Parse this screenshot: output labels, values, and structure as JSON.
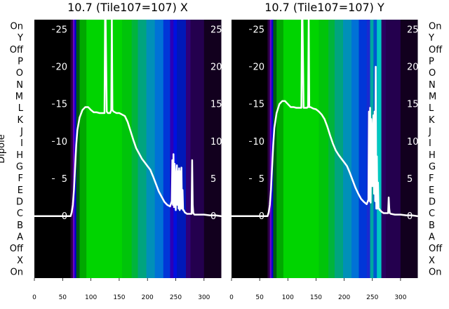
{
  "chart_data": [
    {
      "type": "heatmap",
      "title": "10.7 (Tile107=107) X",
      "ylabel": "Dipole",
      "xlim": [
        0,
        330
      ],
      "x_ticks": [
        0,
        50,
        100,
        150,
        200,
        250,
        300
      ],
      "dipole_labels": [
        "On",
        "Y",
        "Off",
        "P",
        "O",
        "N",
        "M",
        "L",
        "K",
        "J",
        "I",
        "H",
        "G",
        "F",
        "E",
        "D",
        "C",
        "B",
        "A",
        "Off",
        "X",
        "On"
      ],
      "profile_ylim": [
        -8.3,
        26.3
      ],
      "profile_yticks": [
        0,
        5,
        10,
        15,
        20,
        25
      ],
      "heatmap_columns": [
        {
          "x0": 0,
          "x1": 64,
          "color": "#000000"
        },
        {
          "x0": 64,
          "x1": 68,
          "color": "#2a0040"
        },
        {
          "x0": 68,
          "x1": 71,
          "color": "#6a00c8"
        },
        {
          "x0": 71,
          "x1": 74,
          "color": "#0000d0"
        },
        {
          "x0": 74,
          "x1": 80,
          "color": "#005a10"
        },
        {
          "x0": 80,
          "x1": 92,
          "color": "#00a800"
        },
        {
          "x0": 92,
          "x1": 155,
          "color": "#00d400"
        },
        {
          "x0": 155,
          "x1": 172,
          "color": "#00c40a"
        },
        {
          "x0": 172,
          "x1": 183,
          "color": "#00b43c"
        },
        {
          "x0": 183,
          "x1": 198,
          "color": "#00a47e"
        },
        {
          "x0": 198,
          "x1": 213,
          "color": "#0090b8"
        },
        {
          "x0": 213,
          "x1": 228,
          "color": "#0072d6"
        },
        {
          "x0": 228,
          "x1": 240,
          "color": "#0036d8"
        },
        {
          "x0": 240,
          "x1": 246,
          "color": "#2a00b8"
        },
        {
          "x0": 246,
          "x1": 252,
          "color": "#0010e0"
        },
        {
          "x0": 252,
          "x1": 268,
          "color": "#0018b8"
        },
        {
          "x0": 268,
          "x1": 276,
          "color": "#300078"
        },
        {
          "x0": 276,
          "x1": 300,
          "color": "#24004e"
        },
        {
          "x0": 300,
          "x1": 330,
          "color": "#12001e"
        }
      ],
      "profile": {
        "x": [
          0,
          55,
          60,
          64,
          66,
          68,
          70,
          72,
          74,
          76,
          80,
          85,
          90,
          95,
          100,
          105,
          110,
          115,
          120,
          124,
          125,
          126,
          128,
          130,
          134,
          135,
          136,
          137,
          138,
          140,
          145,
          150,
          155,
          160,
          165,
          170,
          175,
          180,
          185,
          190,
          195,
          200,
          205,
          210,
          215,
          220,
          225,
          230,
          235,
          240,
          243,
          244,
          245,
          246,
          247,
          248,
          250,
          251,
          252,
          253,
          254,
          255,
          256,
          257,
          258,
          259,
          260,
          261,
          262,
          263,
          264,
          266,
          268,
          270,
          274,
          276,
          278,
          279,
          280,
          281,
          283,
          290,
          300,
          310,
          320,
          330
        ],
        "y": [
          0,
          0,
          0,
          0,
          0.5,
          1.5,
          3.5,
          6.5,
          9.5,
          11.5,
          13.2,
          14.2,
          14.6,
          14.6,
          14.2,
          13.9,
          13.9,
          13.8,
          13.8,
          13.8,
          26.3,
          26.3,
          14,
          13.8,
          13.8,
          14,
          14.2,
          26.3,
          14.2,
          14,
          13.8,
          13.8,
          13.6,
          13.4,
          12.6,
          11.4,
          10.2,
          9.1,
          8.4,
          7.7,
          7.2,
          6.7,
          6.2,
          5.3,
          4.3,
          3.3,
          2.6,
          1.9,
          1.5,
          1.3,
          2.0,
          7.5,
          1.5,
          8.3,
          1.2,
          7.0,
          0.8,
          5.3,
          6.8,
          1.5,
          6.0,
          1.0,
          6.4,
          0.8,
          6.0,
          1.0,
          6.5,
          1.0,
          3.5,
          0.8,
          0.8,
          0.5,
          0.4,
          0.3,
          0.3,
          0.3,
          0.3,
          7.5,
          1.5,
          0.4,
          0.2,
          0.2,
          0.2,
          0.1,
          0.1,
          0.0
        ]
      }
    },
    {
      "type": "heatmap",
      "title": "10.7 (Tile107=107) Y",
      "ylabel": "",
      "xlim": [
        0,
        330
      ],
      "x_ticks": [
        0,
        50,
        100,
        150,
        200,
        250,
        300
      ],
      "dipole_labels": [
        "On",
        "Y",
        "Off",
        "P",
        "O",
        "N",
        "M",
        "L",
        "K",
        "J",
        "I",
        "H",
        "G",
        "F",
        "E",
        "D",
        "C",
        "B",
        "A",
        "Off",
        "X",
        "On"
      ],
      "profile_ylim": [
        -8.3,
        26.3
      ],
      "profile_yticks": [
        0,
        5,
        10,
        15,
        20,
        25
      ],
      "heatmap_columns": [
        {
          "x0": 0,
          "x1": 64,
          "color": "#000000"
        },
        {
          "x0": 64,
          "x1": 68,
          "color": "#2a0040"
        },
        {
          "x0": 68,
          "x1": 71,
          "color": "#6a00c8"
        },
        {
          "x0": 71,
          "x1": 74,
          "color": "#0000d0"
        },
        {
          "x0": 74,
          "x1": 80,
          "color": "#005a10"
        },
        {
          "x0": 80,
          "x1": 92,
          "color": "#00a800"
        },
        {
          "x0": 92,
          "x1": 155,
          "color": "#00d400"
        },
        {
          "x0": 155,
          "x1": 172,
          "color": "#00c40a"
        },
        {
          "x0": 172,
          "x1": 183,
          "color": "#00b43c"
        },
        {
          "x0": 183,
          "x1": 198,
          "color": "#00a47e"
        },
        {
          "x0": 198,
          "x1": 213,
          "color": "#0090b8"
        },
        {
          "x0": 213,
          "x1": 226,
          "color": "#0072d6"
        },
        {
          "x0": 226,
          "x1": 240,
          "color": "#0036d8"
        },
        {
          "x0": 240,
          "x1": 246,
          "color": "#1a2ad0"
        },
        {
          "x0": 246,
          "x1": 252,
          "color": "#00a8a0"
        },
        {
          "x0": 252,
          "x1": 258,
          "color": "#0058d0"
        },
        {
          "x0": 258,
          "x1": 266,
          "color": "#00c8c0"
        },
        {
          "x0": 266,
          "x1": 274,
          "color": "#2a0060"
        },
        {
          "x0": 274,
          "x1": 300,
          "color": "#24004e"
        },
        {
          "x0": 300,
          "x1": 330,
          "color": "#12001e"
        }
      ],
      "profile": {
        "x": [
          0,
          55,
          60,
          64,
          66,
          68,
          70,
          72,
          74,
          76,
          80,
          85,
          90,
          95,
          100,
          105,
          110,
          115,
          120,
          124,
          125,
          126,
          128,
          130,
          134,
          135,
          136,
          137,
          138,
          140,
          145,
          150,
          155,
          160,
          165,
          170,
          175,
          180,
          185,
          190,
          195,
          200,
          205,
          210,
          215,
          220,
          225,
          230,
          235,
          240,
          243,
          244,
          245,
          246,
          247,
          248,
          250,
          251,
          252,
          253,
          254,
          255,
          256,
          257,
          258,
          259,
          260,
          261,
          262,
          263,
          264,
          266,
          268,
          270,
          274,
          276,
          278,
          279,
          280,
          281,
          283,
          290,
          300,
          310,
          320,
          330
        ],
        "y": [
          0,
          0,
          0,
          0,
          0.5,
          1.5,
          3.5,
          6.5,
          9.5,
          11.8,
          13.8,
          15.0,
          15.4,
          15.4,
          15.0,
          14.6,
          14.6,
          14.5,
          14.5,
          14.5,
          26.3,
          26.3,
          14.5,
          14.5,
          14.5,
          14.6,
          14.6,
          26.3,
          14.6,
          14.6,
          14.4,
          14.3,
          14.0,
          13.6,
          13.0,
          12.0,
          10.8,
          9.7,
          8.8,
          8.2,
          7.7,
          7.2,
          6.7,
          5.8,
          4.8,
          3.8,
          3.0,
          2.3,
          1.9,
          1.6,
          2.2,
          14.0,
          2.0,
          14.5,
          1.8,
          13.0,
          4.0,
          12.0,
          13.5,
          3.0,
          14.0,
          2.0,
          20.0,
          1.0,
          8.0,
          1.0,
          4.5,
          1.0,
          1.0,
          0.8,
          0.8,
          0.6,
          0.5,
          0.4,
          0.4,
          0.4,
          0.4,
          2.5,
          1.0,
          0.4,
          0.3,
          0.2,
          0.2,
          0.1,
          0.1,
          0.0
        ]
      }
    }
  ]
}
